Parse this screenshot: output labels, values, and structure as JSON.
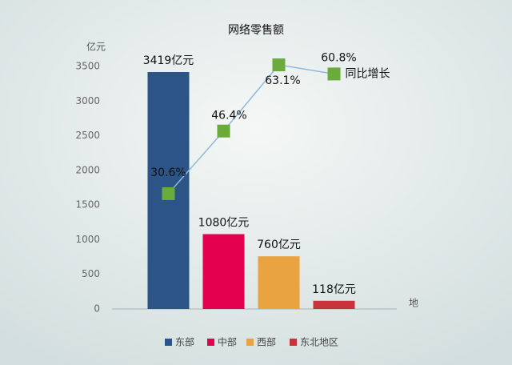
{
  "chart_data": {
    "type": "bar",
    "title": "网络零售额",
    "y_label": "亿元",
    "x_label": "地",
    "categories": [
      "东部",
      "中部",
      "西部",
      "东北地区"
    ],
    "series": [
      {
        "type": "bar",
        "values": [
          3419,
          1080,
          760,
          118
        ],
        "value_labels": [
          "3419亿元",
          "1080亿元",
          "760亿元",
          "118亿元"
        ],
        "colors": [
          "#2c5487",
          "#e2004f",
          "#e9a441",
          "#c8323c"
        ]
      },
      {
        "type": "line",
        "name": "同比增长",
        "values": [
          30.6,
          46.4,
          63.1,
          60.8
        ],
        "value_labels": [
          "30.6%",
          "46.4%",
          "63.1%",
          "60.8%"
        ],
        "color": "#6aab3c",
        "line_color": "#8fb8da",
        "axis": "y2"
      }
    ],
    "ylim": [
      0,
      3500
    ],
    "yticks": [
      0,
      500,
      1000,
      1500,
      2000,
      2500,
      3000,
      3500
    ],
    "y2lim": [
      1.5,
      62.7
    ],
    "legend": "bottom"
  }
}
